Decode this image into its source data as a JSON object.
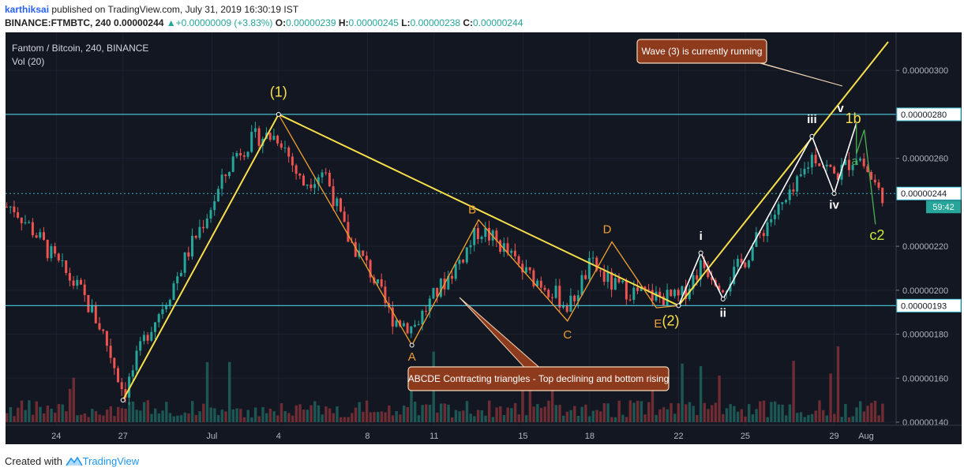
{
  "header": {
    "author": "karthiksai",
    "published_text": " published on TradingView.com, July 31, 2019 16:30:19 IST",
    "symbol": "BINANCE:FTMBTC, 240",
    "last": "0.00000244",
    "change_arrow": "▲",
    "change": "+0.00000009 (+3.83%)",
    "o_label": "O:",
    "o_value": "0.00000239",
    "h_label": "H:",
    "h_value": "0.00000245",
    "l_label": "L:",
    "l_value": "0.00000238",
    "c_label": "C:",
    "c_value": "0.00000244"
  },
  "chart_data": {
    "type": "candlestick",
    "title": "Fantom / Bitcoin, 240, BINANCE",
    "indicator": "Vol (20)",
    "ylim": [
      1.4e-06,
      3.13e-06
    ],
    "price_ticks": [
      "0.00000300",
      "0.00000260",
      "0.00000220",
      "0.00000200",
      "0.00000180",
      "0.00000160",
      "0.00000140"
    ],
    "time_ticks": [
      "24",
      "27",
      "Jul",
      "4",
      "8",
      "11",
      "15",
      "18",
      "22",
      "25",
      "29",
      "Aug"
    ],
    "horizontal_levels": [
      2.8e-06,
      1.93e-06
    ],
    "horizontal_level_labels": [
      "0.00000280",
      "0.00000193"
    ],
    "last_price_label": "0.00000244",
    "countdown": "59:42",
    "close_path": [
      {
        "d": "Jun 22",
        "p": 2.38
      },
      {
        "d": "Jun 23",
        "p": 2.26
      },
      {
        "d": "Jun 24",
        "p": 2.12
      },
      {
        "d": "Jun 25",
        "p": 2.0
      },
      {
        "d": "Jun 26",
        "p": 1.82
      },
      {
        "d": "Jun 27",
        "p": 1.53
      },
      {
        "d": "Jun 28",
        "p": 1.8
      },
      {
        "d": "Jun 29",
        "p": 1.98
      },
      {
        "d": "Jun 30",
        "p": 2.2
      },
      {
        "d": "Jul 1",
        "p": 2.4
      },
      {
        "d": "Jul 2",
        "p": 2.62
      },
      {
        "d": "Jul 3",
        "p": 2.7
      },
      {
        "d": "Jul 4",
        "p": 2.7
      },
      {
        "d": "Jul 5",
        "p": 2.48
      },
      {
        "d": "Jul 6",
        "p": 2.55
      },
      {
        "d": "Jul 7",
        "p": 2.25
      },
      {
        "d": "Jul 8",
        "p": 2.1
      },
      {
        "d": "Jul 9",
        "p": 1.88
      },
      {
        "d": "Jul 10",
        "p": 1.83
      },
      {
        "d": "Jul 11",
        "p": 1.98
      },
      {
        "d": "Jul 12",
        "p": 2.12
      },
      {
        "d": "Jul 13",
        "p": 2.28
      },
      {
        "d": "Jul 14",
        "p": 2.2
      },
      {
        "d": "Jul 15",
        "p": 2.08
      },
      {
        "d": "Jul 16",
        "p": 2.02
      },
      {
        "d": "Jul 17",
        "p": 1.92
      },
      {
        "d": "Jul 18",
        "p": 2.12
      },
      {
        "d": "Jul 19",
        "p": 2.02
      },
      {
        "d": "Jul 20",
        "p": 1.99
      },
      {
        "d": "Jul 21",
        "p": 1.97
      },
      {
        "d": "Jul 22",
        "p": 1.96
      },
      {
        "d": "Jul 23",
        "p": 2.12
      },
      {
        "d": "Jul 24",
        "p": 2.02
      },
      {
        "d": "Jul 25",
        "p": 2.15
      },
      {
        "d": "Jul 26",
        "p": 2.32
      },
      {
        "d": "Jul 27",
        "p": 2.42
      },
      {
        "d": "Jul 28",
        "p": 2.62
      },
      {
        "d": "Jul 29",
        "p": 2.52
      },
      {
        "d": "Jul 30",
        "p": 2.62
      },
      {
        "d": "Jul 31",
        "p": 2.44
      }
    ],
    "annotations": {
      "callout_wave3": "Wave (3) is currently running",
      "callout_abcde": "ABCDE Contracting triangles - Top declining and bottom rising",
      "wave_labels": [
        {
          "text": "(1)",
          "color": "#f9e04a"
        },
        {
          "text": "(2)",
          "color": "#f9e04a"
        },
        {
          "text": "A",
          "color": "#f0a030"
        },
        {
          "text": "B",
          "color": "#f0a030"
        },
        {
          "text": "C",
          "color": "#f0a030"
        },
        {
          "text": "D",
          "color": "#f0a030"
        },
        {
          "text": "E",
          "color": "#f0a030"
        },
        {
          "text": "i",
          "color": "#ffffff"
        },
        {
          "text": "ii",
          "color": "#ffffff"
        },
        {
          "text": "iii",
          "color": "#ffffff"
        },
        {
          "text": "iv",
          "color": "#ffffff"
        },
        {
          "text": "v",
          "color": "#ffffff"
        },
        {
          "text": "1b",
          "color": "#f9e04a"
        },
        {
          "text": "a",
          "color": "#4caf50"
        },
        {
          "text": "c2",
          "color": "#c8e63a"
        }
      ]
    },
    "colors": {
      "background": "#131722",
      "up": "#26a69a",
      "down": "#ef5350",
      "level": "#4dd0e1",
      "trend": "#f9e04a",
      "abcde": "#f0a030",
      "impulse": "#ffffff",
      "callout": "#8e3b1d"
    }
  },
  "footer": {
    "created_with": "Created with ",
    "brand": "TradingView"
  }
}
